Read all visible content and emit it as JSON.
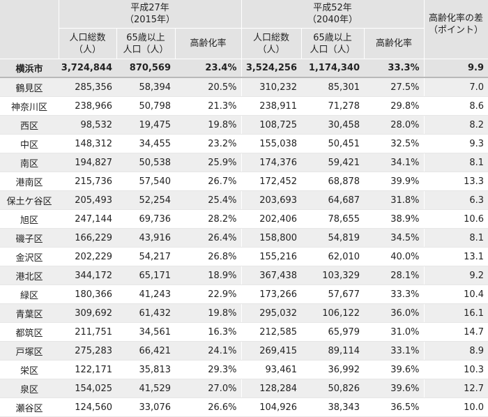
{
  "header": {
    "year2015_line1": "平成27年",
    "year2015_line2": "（2015年）",
    "year2040_line1": "平成52年",
    "year2040_line2": "（2040年）",
    "diff_line1": "高齢化率の差",
    "diff_line2": "（ポイント）",
    "total_pop_line1": "人口総数",
    "total_pop_line2": "（人）",
    "elderly_line1": "65歳以上",
    "elderly_line2": "人口（人）",
    "aging_rate": "高齢化率"
  },
  "total": {
    "name": "横浜市",
    "pop2015": "3,724,844",
    "eld2015": "870,569",
    "rate2015": "23.4%",
    "pop2040": "3,524,256",
    "eld2040": "1,174,340",
    "rate2040": "33.3%",
    "diff": "9.9"
  },
  "rows": [
    {
      "name": "鶴見区",
      "pop2015": "285,356",
      "eld2015": "58,394",
      "rate2015": "20.5%",
      "pop2040": "310,232",
      "eld2040": "85,301",
      "rate2040": "27.5%",
      "diff": "7.0"
    },
    {
      "name": "神奈川区",
      "pop2015": "238,966",
      "eld2015": "50,798",
      "rate2015": "21.3%",
      "pop2040": "238,911",
      "eld2040": "71,278",
      "rate2040": "29.8%",
      "diff": "8.6"
    },
    {
      "name": "西区",
      "pop2015": "98,532",
      "eld2015": "19,475",
      "rate2015": "19.8%",
      "pop2040": "108,725",
      "eld2040": "30,458",
      "rate2040": "28.0%",
      "diff": "8.2"
    },
    {
      "name": "中区",
      "pop2015": "148,312",
      "eld2015": "34,455",
      "rate2015": "23.2%",
      "pop2040": "155,038",
      "eld2040": "50,451",
      "rate2040": "32.5%",
      "diff": "9.3"
    },
    {
      "name": "南区",
      "pop2015": "194,827",
      "eld2015": "50,538",
      "rate2015": "25.9%",
      "pop2040": "174,376",
      "eld2040": "59,421",
      "rate2040": "34.1%",
      "diff": "8.1"
    },
    {
      "name": "港南区",
      "pop2015": "215,736",
      "eld2015": "57,540",
      "rate2015": "26.7%",
      "pop2040": "172,452",
      "eld2040": "68,878",
      "rate2040": "39.9%",
      "diff": "13.3"
    },
    {
      "name": "保土ケ谷区",
      "pop2015": "205,493",
      "eld2015": "52,254",
      "rate2015": "25.4%",
      "pop2040": "203,693",
      "eld2040": "64,687",
      "rate2040": "31.8%",
      "diff": "6.3"
    },
    {
      "name": "旭区",
      "pop2015": "247,144",
      "eld2015": "69,736",
      "rate2015": "28.2%",
      "pop2040": "202,406",
      "eld2040": "78,655",
      "rate2040": "38.9%",
      "diff": "10.6"
    },
    {
      "name": "磯子区",
      "pop2015": "166,229",
      "eld2015": "43,916",
      "rate2015": "26.4%",
      "pop2040": "158,800",
      "eld2040": "54,819",
      "rate2040": "34.5%",
      "diff": "8.1"
    },
    {
      "name": "金沢区",
      "pop2015": "202,229",
      "eld2015": "54,217",
      "rate2015": "26.8%",
      "pop2040": "155,216",
      "eld2040": "62,010",
      "rate2040": "40.0%",
      "diff": "13.1"
    },
    {
      "name": "港北区",
      "pop2015": "344,172",
      "eld2015": "65,171",
      "rate2015": "18.9%",
      "pop2040": "367,438",
      "eld2040": "103,329",
      "rate2040": "28.1%",
      "diff": "9.2"
    },
    {
      "name": "緑区",
      "pop2015": "180,366",
      "eld2015": "41,243",
      "rate2015": "22.9%",
      "pop2040": "173,266",
      "eld2040": "57,677",
      "rate2040": "33.3%",
      "diff": "10.4"
    },
    {
      "name": "青葉区",
      "pop2015": "309,692",
      "eld2015": "61,432",
      "rate2015": "19.8%",
      "pop2040": "295,032",
      "eld2040": "106,122",
      "rate2040": "36.0%",
      "diff": "16.1"
    },
    {
      "name": "都筑区",
      "pop2015": "211,751",
      "eld2015": "34,561",
      "rate2015": "16.3%",
      "pop2040": "212,585",
      "eld2040": "65,979",
      "rate2040": "31.0%",
      "diff": "14.7"
    },
    {
      "name": "戸塚区",
      "pop2015": "275,283",
      "eld2015": "66,421",
      "rate2015": "24.1%",
      "pop2040": "269,415",
      "eld2040": "89,114",
      "rate2040": "33.1%",
      "diff": "8.9"
    },
    {
      "name": "栄区",
      "pop2015": "122,171",
      "eld2015": "35,813",
      "rate2015": "29.3%",
      "pop2040": "93,461",
      "eld2040": "36,992",
      "rate2040": "39.6%",
      "diff": "10.3"
    },
    {
      "name": "泉区",
      "pop2015": "154,025",
      "eld2015": "41,529",
      "rate2015": "27.0%",
      "pop2040": "128,284",
      "eld2040": "50,826",
      "rate2040": "39.6%",
      "diff": "12.7"
    },
    {
      "name": "瀬谷区",
      "pop2015": "124,560",
      "eld2015": "33,076",
      "rate2015": "26.6%",
      "pop2040": "104,926",
      "eld2040": "38,343",
      "rate2040": "36.5%",
      "diff": "10.0"
    }
  ]
}
